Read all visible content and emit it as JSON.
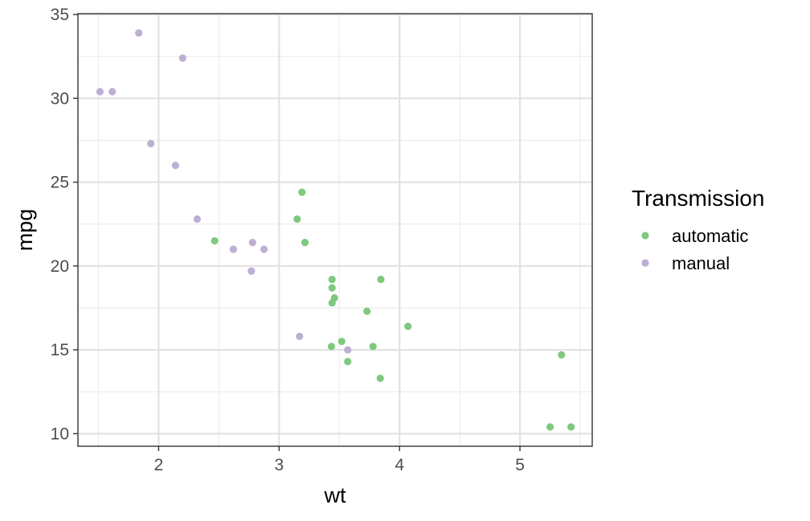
{
  "chart_data": {
    "type": "scatter",
    "title": "",
    "xlabel": "wt",
    "ylabel": "mpg",
    "xlim": [
      1.33,
      5.6
    ],
    "ylim": [
      9.25,
      35.05
    ],
    "x_ticks": [
      2,
      3,
      4,
      5
    ],
    "y_ticks": [
      10,
      15,
      20,
      25,
      30,
      35
    ],
    "x_minor_ticks": [
      1.5,
      2.5,
      3.5,
      4.5,
      5.5
    ],
    "y_minor_ticks": [
      12.5,
      17.5,
      22.5,
      27.5,
      32.5
    ],
    "grid": true,
    "legend": {
      "title": "Transmission",
      "placement": "right"
    },
    "series": [
      {
        "name": "automatic",
        "color": "#7fc97f",
        "points": [
          [
            3.215,
            21.4
          ],
          [
            3.44,
            18.7
          ],
          [
            3.46,
            18.1
          ],
          [
            3.57,
            14.3
          ],
          [
            3.19,
            24.4
          ],
          [
            3.15,
            22.8
          ],
          [
            3.44,
            19.2
          ],
          [
            3.44,
            17.8
          ],
          [
            4.07,
            16.4
          ],
          [
            3.73,
            17.3
          ],
          [
            3.78,
            15.2
          ],
          [
            5.25,
            10.4
          ],
          [
            5.424,
            10.4
          ],
          [
            5.345,
            14.7
          ],
          [
            2.465,
            21.5
          ],
          [
            3.52,
            15.5
          ],
          [
            3.435,
            15.2
          ],
          [
            3.84,
            13.3
          ],
          [
            3.845,
            19.2
          ]
        ]
      },
      {
        "name": "manual",
        "color": "#beaed4",
        "points": [
          [
            2.62,
            21.0
          ],
          [
            2.875,
            21.0
          ],
          [
            2.32,
            22.8
          ],
          [
            2.2,
            32.4
          ],
          [
            1.615,
            30.4
          ],
          [
            1.835,
            33.9
          ],
          [
            1.935,
            27.3
          ],
          [
            2.14,
            26.0
          ],
          [
            1.513,
            30.4
          ],
          [
            3.17,
            15.8
          ],
          [
            2.77,
            19.7
          ],
          [
            3.57,
            15.0
          ],
          [
            2.78,
            21.4
          ]
        ]
      }
    ]
  }
}
